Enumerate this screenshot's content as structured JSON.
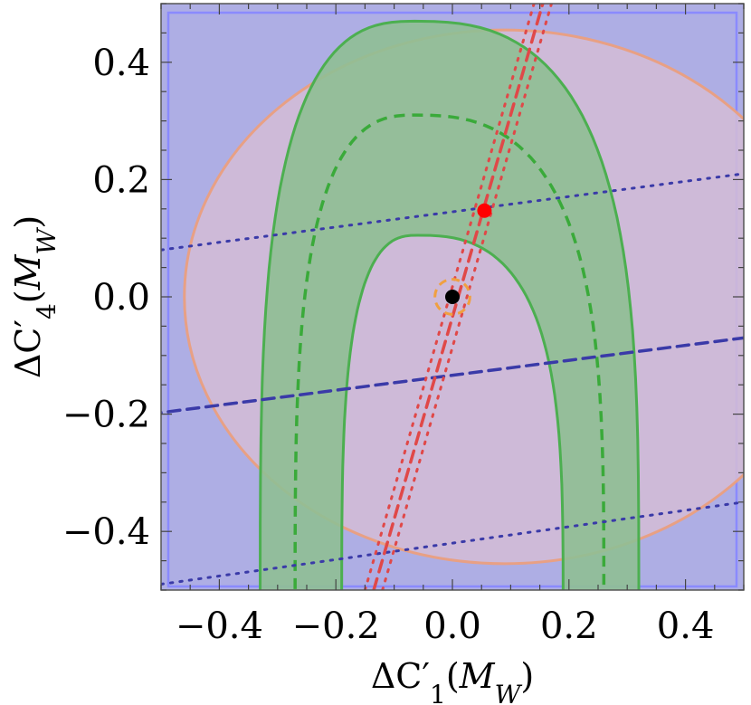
{
  "chart_data": {
    "type": "contour",
    "xlabel": "ΔC′1(MW)",
    "ylabel": "ΔC′4(MW)",
    "xlim": [
      -0.5,
      0.5
    ],
    "ylim": [
      -0.5,
      0.5
    ],
    "x_ticks": [
      -0.4,
      -0.2,
      0.0,
      0.2,
      0.4
    ],
    "x_tick_labels": [
      "−0.4",
      "−0.2",
      "0.0",
      "0.2",
      "0.4"
    ],
    "y_ticks": [
      -0.4,
      -0.2,
      0.0,
      0.2,
      0.4
    ],
    "y_tick_labels": [
      "−0.4",
      "−0.2",
      "0.0",
      "0.2",
      "0.4"
    ],
    "grid": false,
    "colors": {
      "background_region": "#aeaee4",
      "background_edge": "#8a8aff",
      "ellipse_fill": "#d4bcd6",
      "ellipse_edge": "#e8a084",
      "band_fill": "#8fbf93",
      "band_edge": "#4caf50",
      "green_central": "#3aaa3a",
      "blue_line": "#3a3aa8",
      "red_line": "#e04848",
      "orange_circle": "#f0a040",
      "red_point": "#ff0000",
      "black_point": "#000000"
    },
    "regions": {
      "ellipse": {
        "center": [
          0.09,
          0.0
        ],
        "semi_axes": [
          0.55,
          0.455
        ]
      },
      "green_band_outer": {
        "x_bottom": [
          -0.33,
          0.32
        ],
        "y_top": 0.47,
        "x_top": -0.065
      },
      "green_band_inner": {
        "x_bottom": [
          -0.19,
          0.19
        ],
        "y_top": 0.105,
        "x_top": -0.06
      },
      "green_central": {
        "x_bottom": [
          -0.27,
          0.26
        ],
        "y_top": 0.31,
        "x_top": -0.065
      }
    },
    "series": [
      {
        "style": "dashed",
        "color": "blue",
        "points": [
          [
            -0.52,
            -0.2
          ],
          [
            0.5,
            -0.07
          ]
        ]
      },
      {
        "style": "dotted",
        "color": "blue",
        "points": [
          [
            -0.5,
            0.08
          ],
          [
            0.5,
            0.21
          ]
        ]
      },
      {
        "style": "dotted",
        "color": "blue",
        "points": [
          [
            -0.5,
            -0.49
          ],
          [
            0.5,
            -0.35
          ]
        ]
      },
      {
        "style": "dashed",
        "color": "red",
        "points": [
          [
            -0.135,
            -0.5
          ],
          [
            0.155,
            0.5
          ]
        ]
      },
      {
        "style": "dotted",
        "color": "red",
        "points": [
          [
            -0.15,
            -0.5
          ],
          [
            0.14,
            0.5
          ]
        ]
      },
      {
        "style": "dotted",
        "color": "red",
        "points": [
          [
            -0.12,
            -0.5
          ],
          [
            0.17,
            0.5
          ]
        ]
      },
      {
        "style": "dashed",
        "color": "orange",
        "shape": "circle",
        "center": [
          0.0,
          0.0
        ],
        "radius": 0.03
      }
    ],
    "points": [
      {
        "color": "red",
        "x": 0.055,
        "y": 0.147
      },
      {
        "color": "black",
        "x": 0.0,
        "y": 0.0
      }
    ]
  }
}
